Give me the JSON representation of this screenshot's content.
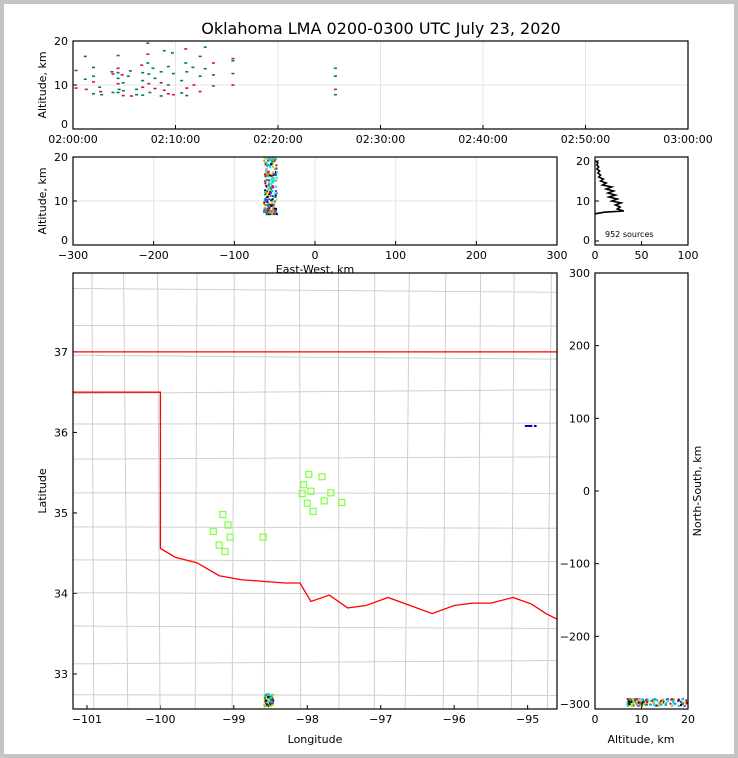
{
  "chart_data": [
    {
      "type": "scatter",
      "id": "time-altitude",
      "title": "Oklahoma LMA 0200-0300 UTC July 23, 2020",
      "xlabel": "",
      "ylabel": "Altitude, km",
      "xlim_minutes": [
        0,
        60
      ],
      "ylim": [
        0,
        20
      ],
      "xticks": [
        {
          "v": 0,
          "label": "02:00:00"
        },
        {
          "v": 10,
          "label": "02:10:00"
        },
        {
          "v": 20,
          "label": "02:20:00"
        },
        {
          "v": 30,
          "label": "02:30:00"
        },
        {
          "v": 40,
          "label": "02:40:00"
        },
        {
          "v": 50,
          "label": "02:50:00"
        },
        {
          "v": 60,
          "label": "03:00:00"
        }
      ],
      "yticks": [
        0,
        10,
        20
      ],
      "points_minutes_km": [
        [
          0.3,
          13.3
        ],
        [
          0.3,
          9.3
        ],
        [
          1.2,
          16.5
        ],
        [
          1.2,
          11.3
        ],
        [
          1.3,
          9
        ],
        [
          2.0,
          14
        ],
        [
          2.0,
          12
        ],
        [
          2.0,
          10.7
        ],
        [
          2.0,
          8
        ],
        [
          2.6,
          9.5
        ],
        [
          2.7,
          8.5
        ],
        [
          2.8,
          7.8
        ],
        [
          3.8,
          13
        ],
        [
          3.9,
          12.5
        ],
        [
          3.9,
          8.3
        ],
        [
          4.4,
          16.7
        ],
        [
          4.4,
          13.8
        ],
        [
          4.4,
          12.8
        ],
        [
          4.4,
          11.5
        ],
        [
          4.4,
          10.3
        ],
        [
          4.4,
          8.3
        ],
        [
          4.5,
          9
        ],
        [
          4.8,
          12.3
        ],
        [
          4.9,
          10.5
        ],
        [
          4.9,
          8.7
        ],
        [
          4.9,
          7.6
        ],
        [
          5.4,
          12
        ],
        [
          5.6,
          13.2
        ],
        [
          5.7,
          7.5
        ],
        [
          6.2,
          9
        ],
        [
          6.2,
          7.8
        ],
        [
          6.7,
          14.5
        ],
        [
          6.8,
          12.8
        ],
        [
          6.8,
          11
        ],
        [
          6.8,
          9.5
        ],
        [
          6.8,
          7.7
        ],
        [
          7.3,
          19.5
        ],
        [
          7.3,
          17
        ],
        [
          7.3,
          15
        ],
        [
          7.4,
          12.5
        ],
        [
          7.4,
          10.3
        ],
        [
          7.5,
          8.3
        ],
        [
          7.8,
          13.8
        ],
        [
          8.0,
          9.2
        ],
        [
          8.0,
          11.5
        ],
        [
          8.6,
          13
        ],
        [
          8.6,
          10.5
        ],
        [
          8.6,
          7.5
        ],
        [
          8.9,
          17.8
        ],
        [
          8.9,
          8.8
        ],
        [
          9.3,
          14.2
        ],
        [
          9.3,
          10
        ],
        [
          9.3,
          8
        ],
        [
          9.7,
          17.3
        ],
        [
          9.8,
          12.6
        ],
        [
          9.8,
          7.8
        ],
        [
          10.6,
          11
        ],
        [
          10.6,
          8.2
        ],
        [
          11.0,
          18.2
        ],
        [
          11.0,
          15
        ],
        [
          11.1,
          13
        ],
        [
          11.1,
          9.3
        ],
        [
          11.1,
          7.6
        ],
        [
          11.7,
          14
        ],
        [
          11.8,
          10
        ],
        [
          12.4,
          16.5
        ],
        [
          12.4,
          12
        ],
        [
          12.4,
          8.5
        ],
        [
          12.9,
          18.6
        ],
        [
          12.9,
          13.7
        ],
        [
          13.7,
          15
        ],
        [
          13.7,
          12.3
        ],
        [
          13.7,
          9.8
        ],
        [
          15.6,
          16
        ],
        [
          15.6,
          15.5
        ],
        [
          15.6,
          12.6
        ],
        [
          15.6,
          10
        ],
        [
          25.6,
          13.8
        ],
        [
          25.6,
          12
        ],
        [
          25.6,
          9
        ],
        [
          25.6,
          7.8
        ]
      ],
      "colors": [
        "#008040",
        "#e0006a"
      ]
    },
    {
      "type": "scatter",
      "id": "ew-altitude",
      "xlabel": "East-West, km",
      "ylabel": "Altitude, km",
      "xlim": [
        -300,
        300
      ],
      "ylim": [
        0,
        20
      ],
      "xticks": [
        -300,
        -200,
        -100,
        0,
        100,
        200,
        300
      ],
      "yticks": [
        0,
        10,
        20
      ],
      "x_center": -55,
      "alt_range": [
        7,
        20
      ]
    },
    {
      "type": "line",
      "id": "altitude-histogram",
      "xlim": [
        0,
        100
      ],
      "ylim": [
        -1,
        21
      ],
      "xticks": [
        0,
        50,
        100
      ],
      "yticks": [
        0,
        10,
        20
      ],
      "annotation": "952 sources",
      "profile_alt_count": [
        [
          6.8,
          0
        ],
        [
          7.2,
          10
        ],
        [
          7.5,
          31
        ],
        [
          8,
          24
        ],
        [
          8.5,
          27
        ],
        [
          9,
          22
        ],
        [
          9.5,
          28
        ],
        [
          10,
          18
        ],
        [
          10.5,
          24
        ],
        [
          11,
          15
        ],
        [
          11.5,
          22
        ],
        [
          12,
          14
        ],
        [
          12.5,
          20
        ],
        [
          13,
          12
        ],
        [
          13.5,
          18
        ],
        [
          14,
          8
        ],
        [
          14.5,
          12
        ],
        [
          15,
          6
        ],
        [
          15.5,
          9
        ],
        [
          16,
          4
        ],
        [
          16.5,
          6
        ],
        [
          17,
          3
        ],
        [
          17.5,
          5
        ],
        [
          18,
          2
        ],
        [
          18.5,
          4
        ],
        [
          19,
          2
        ],
        [
          19.5,
          3
        ],
        [
          20,
          1
        ]
      ]
    },
    {
      "type": "scatter",
      "id": "plan-view",
      "xlabel": "Longitude",
      "ylabel": "Latitude",
      "xlim": [
        -101.19,
        -94.6
      ],
      "ylim": [
        32.565,
        37.98
      ],
      "xticks": [
        -101,
        -100,
        -99,
        -98,
        -97,
        -96,
        -95
      ],
      "yticks": [
        33,
        34,
        35,
        36,
        37
      ],
      "stations": [
        [
          -99.15,
          34.98
        ],
        [
          -99.08,
          34.85
        ],
        [
          -99.28,
          34.77
        ],
        [
          -99.05,
          34.7
        ],
        [
          -99.2,
          34.6
        ],
        [
          -99.12,
          34.52
        ],
        [
          -98.6,
          34.7
        ],
        [
          -97.98,
          35.48
        ],
        [
          -97.8,
          35.45
        ],
        [
          -98.05,
          35.35
        ],
        [
          -97.95,
          35.27
        ],
        [
          -98.07,
          35.24
        ],
        [
          -97.68,
          35.25
        ],
        [
          -98.0,
          35.12
        ],
        [
          -97.77,
          35.15
        ],
        [
          -97.53,
          35.13
        ],
        [
          -97.92,
          35.02
        ]
      ],
      "sources_main": {
        "lon": -98.52,
        "lat": [
          32.6,
          32.75
        ]
      },
      "sources_ne": {
        "lon": -94.95,
        "lat": 36.08
      }
    },
    {
      "type": "scatter",
      "id": "ns-altitude",
      "xlabel": "Altitude, km",
      "ylabel": "North-South, km",
      "xlim": [
        0,
        20
      ],
      "ylim": [
        -300,
        300
      ],
      "xticks": [
        0,
        10,
        20
      ],
      "yticks": [
        -300,
        -200,
        -100,
        0,
        100,
        200,
        300
      ]
    }
  ]
}
